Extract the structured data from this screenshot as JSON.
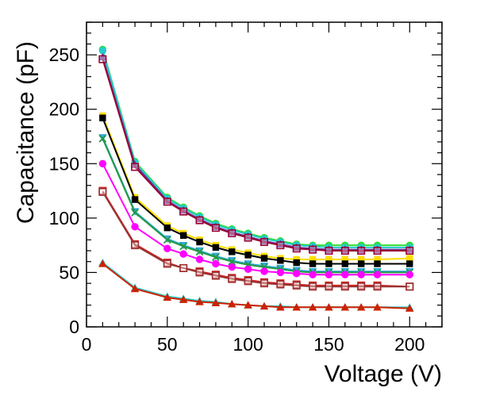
{
  "chart_data": {
    "type": "line",
    "title": "",
    "xlabel": "Voltage (V)",
    "ylabel": "Capacitance (pF)",
    "xlim": [
      0,
      220
    ],
    "ylim": [
      0,
      280
    ],
    "xticks": [
      0,
      50,
      100,
      150,
      200
    ],
    "yticks": [
      0,
      50,
      100,
      150,
      200,
      250
    ],
    "x": [
      10,
      30,
      50,
      60,
      70,
      80,
      90,
      100,
      110,
      120,
      130,
      140,
      150,
      160,
      170,
      180,
      200
    ],
    "series": [
      {
        "name": "green circles",
        "color": "#33dd33",
        "marker": "circle",
        "values": [
          255,
          152,
          119,
          110,
          102,
          95,
          90,
          86,
          82,
          79,
          76,
          75,
          75,
          75,
          75,
          75,
          75
        ]
      },
      {
        "name": "cyan circles",
        "color": "#22cccc",
        "marker": "circle",
        "values": [
          254,
          151,
          118,
          109,
          101,
          94,
          89,
          85,
          81,
          78,
          75,
          74,
          73,
          73,
          73,
          73,
          73
        ]
      },
      {
        "name": "purple triangles",
        "color": "#663399",
        "marker": "triangle",
        "values": [
          248,
          149,
          116,
          107,
          99,
          92,
          87,
          83,
          79,
          76,
          73,
          72,
          71,
          71,
          71,
          71,
          71
        ]
      },
      {
        "name": "maroon open squares",
        "color": "#990033",
        "marker": "open-square",
        "values": [
          246,
          147,
          115,
          106,
          98,
          91,
          86,
          82,
          78,
          75,
          72,
          71,
          70,
          70,
          70,
          70,
          70
        ]
      },
      {
        "name": "yellow squares",
        "color": "#ffdd00",
        "marker": "square",
        "values": [
          194,
          119,
          93,
          86,
          80,
          75,
          71,
          68,
          65,
          63,
          62,
          62,
          62,
          62,
          62,
          62,
          63
        ]
      },
      {
        "name": "black squares",
        "color": "#000000",
        "marker": "square",
        "values": [
          192,
          117,
          91,
          84,
          78,
          73,
          69,
          66,
          63,
          61,
          59,
          58,
          58,
          58,
          58,
          58,
          58
        ]
      },
      {
        "name": "cyan down-triangles",
        "color": "#33aadd",
        "marker": "down-triangle",
        "values": [
          174,
          106,
          81,
          75,
          70,
          65,
          61,
          58,
          56,
          54,
          52,
          51,
          51,
          51,
          51,
          51,
          51
        ]
      },
      {
        "name": "green crosses",
        "color": "#229944",
        "marker": "cross",
        "values": [
          173,
          105,
          80,
          74,
          69,
          64,
          60,
          57,
          55,
          53,
          51,
          50,
          50,
          50,
          50,
          50,
          50
        ]
      },
      {
        "name": "magenta circles",
        "color": "#ff00ff",
        "marker": "circle",
        "values": [
          150,
          92,
          72,
          67,
          62,
          58,
          55,
          53,
          51,
          50,
          49,
          48,
          48,
          48,
          48,
          48,
          48
        ]
      },
      {
        "name": "red open squares",
        "color": "#cc2222",
        "marker": "open-square",
        "values": [
          125,
          76,
          59,
          54,
          51,
          48,
          45,
          43,
          41,
          40,
          39,
          38,
          38,
          38,
          38,
          38,
          37
        ]
      },
      {
        "name": "brown open squares",
        "color": "#993333",
        "marker": "open-square",
        "values": [
          124,
          75,
          58,
          54,
          50,
          47,
          44,
          42,
          40,
          39,
          38,
          37,
          37,
          37,
          37,
          37,
          37
        ]
      },
      {
        "name": "cyan triangles",
        "color": "#33cccc",
        "marker": "triangle",
        "values": [
          59,
          36,
          28,
          26,
          24,
          23,
          21,
          20,
          19,
          19,
          18,
          18,
          18,
          18,
          18,
          18,
          18
        ]
      },
      {
        "name": "red triangles",
        "color": "#cc2200",
        "marker": "triangle",
        "values": [
          58,
          35,
          27,
          25,
          23,
          22,
          21,
          20,
          19,
          18,
          18,
          18,
          18,
          18,
          18,
          18,
          17
        ]
      }
    ]
  }
}
